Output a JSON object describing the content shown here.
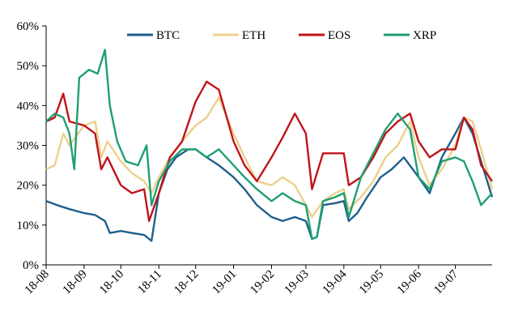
{
  "chart_data": {
    "type": "line",
    "title": "",
    "xlabel": "",
    "ylabel": "",
    "ylim": [
      0,
      60
    ],
    "y_ticks": [
      "0%",
      "10%",
      "20%",
      "30%",
      "40%",
      "50%",
      "60%"
    ],
    "y_tick_values": [
      0,
      10,
      20,
      30,
      40,
      50,
      60
    ],
    "x_ticks": [
      "18-08",
      "18-09",
      "18-10",
      "18-11",
      "18-12",
      "19-01",
      "19-02",
      "19-03",
      "19-04",
      "19-05",
      "19-06",
      "19-07"
    ],
    "x_range": [
      "2018-08-01",
      "2019-07-31"
    ],
    "grid": false,
    "legend_position": "top",
    "series": [
      {
        "name": "BTC",
        "color": "#1f5f8b",
        "points": [
          [
            "2018-08-01",
            16
          ],
          [
            "2018-08-10",
            15
          ],
          [
            "2018-08-20",
            14
          ],
          [
            "2018-09-01",
            13
          ],
          [
            "2018-09-10",
            12.5
          ],
          [
            "2018-09-18",
            11
          ],
          [
            "2018-09-22",
            8
          ],
          [
            "2018-10-01",
            8.5
          ],
          [
            "2018-10-10",
            8
          ],
          [
            "2018-10-20",
            7.5
          ],
          [
            "2018-10-26",
            6
          ],
          [
            "2018-11-01",
            18
          ],
          [
            "2018-11-08",
            24
          ],
          [
            "2018-11-15",
            27
          ],
          [
            "2018-11-25",
            29
          ],
          [
            "2018-12-01",
            29
          ],
          [
            "2018-12-10",
            27
          ],
          [
            "2018-12-20",
            25
          ],
          [
            "2019-01-01",
            22
          ],
          [
            "2019-01-10",
            19
          ],
          [
            "2019-01-20",
            15
          ],
          [
            "2019-02-01",
            12
          ],
          [
            "2019-02-10",
            11
          ],
          [
            "2019-02-20",
            12
          ],
          [
            "2019-03-01",
            11
          ],
          [
            "2019-03-06",
            6.5
          ],
          [
            "2019-03-10",
            7
          ],
          [
            "2019-03-15",
            15
          ],
          [
            "2019-03-25",
            15.5
          ],
          [
            "2019-04-01",
            16
          ],
          [
            "2019-04-05",
            11
          ],
          [
            "2019-04-12",
            13
          ],
          [
            "2019-04-20",
            17
          ],
          [
            "2019-05-01",
            22
          ],
          [
            "2019-05-10",
            24
          ],
          [
            "2019-05-20",
            27
          ],
          [
            "2019-06-01",
            22
          ],
          [
            "2019-06-10",
            18
          ],
          [
            "2019-06-20",
            27
          ],
          [
            "2019-07-01",
            33
          ],
          [
            "2019-07-08",
            37
          ],
          [
            "2019-07-15",
            33
          ],
          [
            "2019-07-22",
            26
          ],
          [
            "2019-07-31",
            17
          ]
        ]
      },
      {
        "name": "ETH",
        "color": "#ecd08c",
        "points": [
          [
            "2018-08-01",
            24
          ],
          [
            "2018-08-08",
            25
          ],
          [
            "2018-08-15",
            33
          ],
          [
            "2018-08-20",
            30
          ],
          [
            "2018-09-01",
            35
          ],
          [
            "2018-09-10",
            36
          ],
          [
            "2018-09-15",
            27
          ],
          [
            "2018-09-20",
            31
          ],
          [
            "2018-10-01",
            26
          ],
          [
            "2018-10-10",
            23
          ],
          [
            "2018-10-20",
            21
          ],
          [
            "2018-10-26",
            18
          ],
          [
            "2018-11-01",
            22
          ],
          [
            "2018-11-10",
            27
          ],
          [
            "2018-11-20",
            31
          ],
          [
            "2018-12-01",
            35
          ],
          [
            "2018-12-10",
            37
          ],
          [
            "2018-12-20",
            42
          ],
          [
            "2019-01-01",
            33
          ],
          [
            "2019-01-10",
            27
          ],
          [
            "2019-01-20",
            21
          ],
          [
            "2019-02-01",
            20
          ],
          [
            "2019-02-10",
            22
          ],
          [
            "2019-02-20",
            20
          ],
          [
            "2019-03-01",
            15
          ],
          [
            "2019-03-06",
            12
          ],
          [
            "2019-03-15",
            16
          ],
          [
            "2019-03-25",
            18
          ],
          [
            "2019-04-01",
            19
          ],
          [
            "2019-04-05",
            14
          ],
          [
            "2019-04-15",
            17
          ],
          [
            "2019-04-25",
            21
          ],
          [
            "2019-05-05",
            27
          ],
          [
            "2019-05-15",
            30
          ],
          [
            "2019-05-25",
            36
          ],
          [
            "2019-06-01",
            27
          ],
          [
            "2019-06-10",
            20
          ],
          [
            "2019-06-20",
            24
          ],
          [
            "2019-07-01",
            30
          ],
          [
            "2019-07-08",
            37
          ],
          [
            "2019-07-15",
            36
          ],
          [
            "2019-07-22",
            29
          ],
          [
            "2019-07-31",
            19
          ]
        ]
      },
      {
        "name": "EOS",
        "color": "#c0141b",
        "points": [
          [
            "2018-08-01",
            36
          ],
          [
            "2018-08-08",
            37
          ],
          [
            "2018-08-15",
            43
          ],
          [
            "2018-08-20",
            36
          ],
          [
            "2018-09-01",
            35
          ],
          [
            "2018-09-10",
            33
          ],
          [
            "2018-09-15",
            24
          ],
          [
            "2018-09-20",
            27
          ],
          [
            "2018-10-01",
            20
          ],
          [
            "2018-10-10",
            18
          ],
          [
            "2018-10-20",
            19
          ],
          [
            "2018-10-24",
            11
          ],
          [
            "2018-11-01",
            18
          ],
          [
            "2018-11-10",
            27
          ],
          [
            "2018-11-20",
            31
          ],
          [
            "2018-12-01",
            41
          ],
          [
            "2018-12-10",
            46
          ],
          [
            "2018-12-20",
            44
          ],
          [
            "2019-01-01",
            31
          ],
          [
            "2019-01-10",
            25
          ],
          [
            "2019-01-20",
            21
          ],
          [
            "2019-02-01",
            27
          ],
          [
            "2019-02-10",
            32
          ],
          [
            "2019-02-20",
            38
          ],
          [
            "2019-03-01",
            33
          ],
          [
            "2019-03-06",
            19
          ],
          [
            "2019-03-15",
            28
          ],
          [
            "2019-03-25",
            28
          ],
          [
            "2019-04-01",
            28
          ],
          [
            "2019-04-05",
            20
          ],
          [
            "2019-04-15",
            22
          ],
          [
            "2019-04-25",
            27
          ],
          [
            "2019-05-05",
            33
          ],
          [
            "2019-05-15",
            36
          ],
          [
            "2019-05-25",
            38
          ],
          [
            "2019-06-01",
            31
          ],
          [
            "2019-06-10",
            27
          ],
          [
            "2019-06-20",
            29
          ],
          [
            "2019-07-01",
            29
          ],
          [
            "2019-07-08",
            37
          ],
          [
            "2019-07-15",
            34
          ],
          [
            "2019-07-22",
            25
          ],
          [
            "2019-07-31",
            21
          ]
        ]
      },
      {
        "name": "XRP",
        "color": "#1f9f72",
        "points": [
          [
            "2018-08-01",
            36
          ],
          [
            "2018-08-08",
            38
          ],
          [
            "2018-08-15",
            37
          ],
          [
            "2018-08-20",
            33
          ],
          [
            "2018-08-24",
            24
          ],
          [
            "2018-08-28",
            47
          ],
          [
            "2018-09-05",
            49
          ],
          [
            "2018-09-12",
            48
          ],
          [
            "2018-09-18",
            54
          ],
          [
            "2018-09-22",
            40
          ],
          [
            "2018-09-28",
            31
          ],
          [
            "2018-10-05",
            26
          ],
          [
            "2018-10-15",
            25
          ],
          [
            "2018-10-22",
            30
          ],
          [
            "2018-10-26",
            15
          ],
          [
            "2018-11-01",
            21
          ],
          [
            "2018-11-10",
            26
          ],
          [
            "2018-11-20",
            29
          ],
          [
            "2018-12-01",
            29
          ],
          [
            "2018-12-10",
            27
          ],
          [
            "2018-12-20",
            29
          ],
          [
            "2019-01-01",
            25
          ],
          [
            "2019-01-10",
            22
          ],
          [
            "2019-01-20",
            19
          ],
          [
            "2019-02-01",
            16
          ],
          [
            "2019-02-10",
            18
          ],
          [
            "2019-02-20",
            16
          ],
          [
            "2019-03-01",
            15
          ],
          [
            "2019-03-06",
            6.5
          ],
          [
            "2019-03-10",
            7
          ],
          [
            "2019-03-15",
            16
          ],
          [
            "2019-03-25",
            17
          ],
          [
            "2019-04-01",
            18
          ],
          [
            "2019-04-05",
            12
          ],
          [
            "2019-04-15",
            22
          ],
          [
            "2019-04-25",
            28
          ],
          [
            "2019-05-05",
            34
          ],
          [
            "2019-05-15",
            38
          ],
          [
            "2019-05-25",
            34
          ],
          [
            "2019-06-01",
            22
          ],
          [
            "2019-06-10",
            19
          ],
          [
            "2019-06-20",
            26
          ],
          [
            "2019-07-01",
            27
          ],
          [
            "2019-07-08",
            26
          ],
          [
            "2019-07-15",
            21
          ],
          [
            "2019-07-22",
            15
          ],
          [
            "2019-07-31",
            18
          ]
        ]
      }
    ]
  }
}
